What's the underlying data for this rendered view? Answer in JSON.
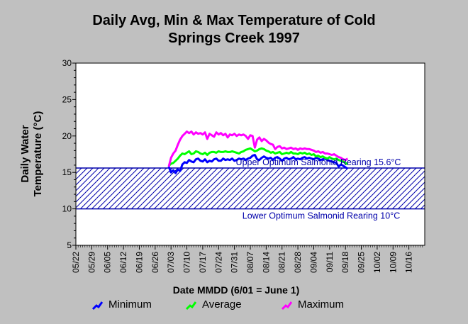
{
  "chart_data": {
    "type": "line",
    "title_line1": "Daily Avg, Min & Max Temperature of Cold",
    "title_line2": "Springs Creek 1997",
    "xlabel": "Date MMDD (6/01 = June 1)",
    "ylabel_line1": "Daily Water",
    "ylabel_line2": "Temperature (°C)",
    "ylim": [
      5,
      30
    ],
    "yticks": [
      "5",
      "10",
      "15",
      "20",
      "25",
      "30"
    ],
    "xlim_day": [
      0,
      154
    ],
    "xtick_labels": [
      "05/22",
      "05/29",
      "06/05",
      "06/12",
      "06/19",
      "06/26",
      "07/03",
      "07/10",
      "07/17",
      "07/24",
      "07/31",
      "08/07",
      "08/14",
      "08/21",
      "08/28",
      "09/04",
      "09/11",
      "09/18",
      "09/25",
      "10/02",
      "10/09",
      "10/16"
    ],
    "band": {
      "upper": 15.6,
      "lower": 10,
      "upper_label": "Upper Optimum Salmonid Rearing 15.6°C",
      "lower_label": "Lower Optimum Salmonid Rearing 10°C",
      "color": "#0000aa"
    },
    "series": [
      {
        "name": "Minimum",
        "color": "#0000ff",
        "x": [
          41,
          42,
          43,
          44,
          45,
          46,
          47,
          48,
          49,
          50,
          51,
          52,
          53,
          54,
          55,
          56,
          57,
          58,
          59,
          60,
          61,
          62,
          63,
          64,
          65,
          66,
          67,
          68,
          69,
          70,
          71,
          72,
          73,
          74,
          75,
          76,
          77,
          78,
          79,
          80,
          81,
          82,
          83,
          84,
          85,
          86,
          87,
          88,
          89,
          90,
          91,
          92,
          93,
          94,
          95,
          96,
          97,
          98,
          99,
          100,
          101,
          102,
          103,
          104,
          105,
          106,
          107,
          108,
          109,
          110,
          111,
          112,
          113,
          114,
          115,
          116,
          117,
          118,
          119,
          120
        ],
        "values": [
          15.8,
          15.0,
          15.3,
          14.9,
          15.4,
          15.2,
          16.1,
          16.4,
          16.3,
          16.7,
          16.5,
          16.4,
          16.8,
          16.9,
          16.6,
          16.5,
          16.8,
          16.4,
          16.6,
          16.5,
          16.8,
          16.9,
          16.6,
          16.6,
          16.9,
          16.7,
          16.8,
          16.7,
          16.9,
          16.6,
          16.7,
          16.9,
          16.8,
          16.9,
          16.7,
          16.9,
          17.0,
          17.3,
          17.4,
          16.8,
          16.7,
          17.0,
          17.2,
          17.0,
          16.9,
          17.0,
          16.7,
          17.0,
          17.1,
          16.9,
          16.6,
          16.9,
          17.0,
          16.8,
          16.9,
          17.1,
          16.8,
          16.9,
          16.8,
          17.0,
          17.1,
          16.9,
          17.0,
          16.9,
          16.8,
          17.0,
          16.9,
          16.7,
          16.8,
          16.9,
          16.7,
          16.6,
          16.5,
          16.4,
          16.3,
          15.8,
          16.1,
          15.9,
          15.7,
          15.5
        ]
      },
      {
        "name": "Average",
        "color": "#00ff00",
        "x": [
          41,
          42,
          43,
          44,
          45,
          46,
          47,
          48,
          49,
          50,
          51,
          52,
          53,
          54,
          55,
          56,
          57,
          58,
          59,
          60,
          61,
          62,
          63,
          64,
          65,
          66,
          67,
          68,
          69,
          70,
          71,
          72,
          73,
          74,
          75,
          76,
          77,
          78,
          79,
          80,
          81,
          82,
          83,
          84,
          85,
          86,
          87,
          88,
          89,
          90,
          91,
          92,
          93,
          94,
          95,
          96,
          97,
          98,
          99,
          100,
          101,
          102,
          103,
          104,
          105,
          106,
          107,
          108,
          109,
          110,
          111,
          112,
          113,
          114,
          115,
          116,
          117,
          118,
          119,
          120
        ],
        "values": [
          15.9,
          16.2,
          16.3,
          16.6,
          16.9,
          17.3,
          17.6,
          17.5,
          17.7,
          17.9,
          17.5,
          17.6,
          17.9,
          17.8,
          17.6,
          17.5,
          17.7,
          17.4,
          17.7,
          17.8,
          17.8,
          17.7,
          17.9,
          17.8,
          17.8,
          17.9,
          17.8,
          17.8,
          17.9,
          17.8,
          17.7,
          17.6,
          17.8,
          17.9,
          18.1,
          18.2,
          18.3,
          18.1,
          17.9,
          18.0,
          18.2,
          18.3,
          18.2,
          18.0,
          17.9,
          17.7,
          17.8,
          17.6,
          17.7,
          17.8,
          17.5,
          17.6,
          17.7,
          17.6,
          17.8,
          17.6,
          17.6,
          17.5,
          17.7,
          17.6,
          17.7,
          17.5,
          17.6,
          17.4,
          17.5,
          17.2,
          17.3,
          17.1,
          17.2,
          17.0,
          16.9,
          17.1,
          16.9,
          16.8,
          16.9,
          16.7,
          16.6,
          16.5,
          16.3,
          16.1
        ]
      },
      {
        "name": "Maximum",
        "color": "#ff00ff",
        "x": [
          41,
          42,
          43,
          44,
          45,
          46,
          47,
          48,
          49,
          50,
          51,
          52,
          53,
          54,
          55,
          56,
          57,
          58,
          59,
          60,
          61,
          62,
          63,
          64,
          65,
          66,
          67,
          68,
          69,
          70,
          71,
          72,
          73,
          74,
          75,
          76,
          77,
          78,
          79,
          80,
          81,
          82,
          83,
          84,
          85,
          86,
          87,
          88,
          89,
          90,
          91,
          92,
          93,
          94,
          95,
          96,
          97,
          98,
          99,
          100,
          101,
          102,
          103,
          104,
          105,
          106,
          107,
          108,
          109,
          110,
          111,
          112,
          113,
          114,
          115,
          116,
          117,
          118,
          119,
          120
        ],
        "values": [
          15.8,
          17.0,
          17.6,
          18.0,
          18.8,
          19.5,
          20.0,
          20.3,
          20.6,
          20.4,
          20.6,
          20.2,
          20.5,
          20.3,
          20.4,
          20.2,
          20.5,
          19.6,
          20.3,
          20.1,
          19.9,
          20.5,
          20.2,
          20.4,
          20.1,
          20.3,
          19.8,
          20.2,
          20.1,
          20.3,
          20.0,
          20.2,
          20.1,
          20.2,
          20.0,
          19.6,
          20.1,
          20.0,
          18.4,
          19.5,
          19.8,
          19.3,
          19.6,
          19.4,
          19.1,
          18.9,
          18.8,
          18.2,
          18.5,
          18.6,
          18.3,
          18.4,
          18.2,
          18.3,
          18.4,
          18.2,
          18.3,
          18.1,
          18.3,
          18.2,
          18.3,
          18.2,
          18.2,
          18.1,
          18.0,
          17.8,
          17.9,
          17.7,
          17.8,
          17.6,
          17.6,
          17.5,
          17.4,
          17.5,
          17.3,
          17.1,
          17.0,
          16.8,
          16.7,
          16.9
        ]
      }
    ],
    "grid": false,
    "legend_position": "bottom"
  }
}
